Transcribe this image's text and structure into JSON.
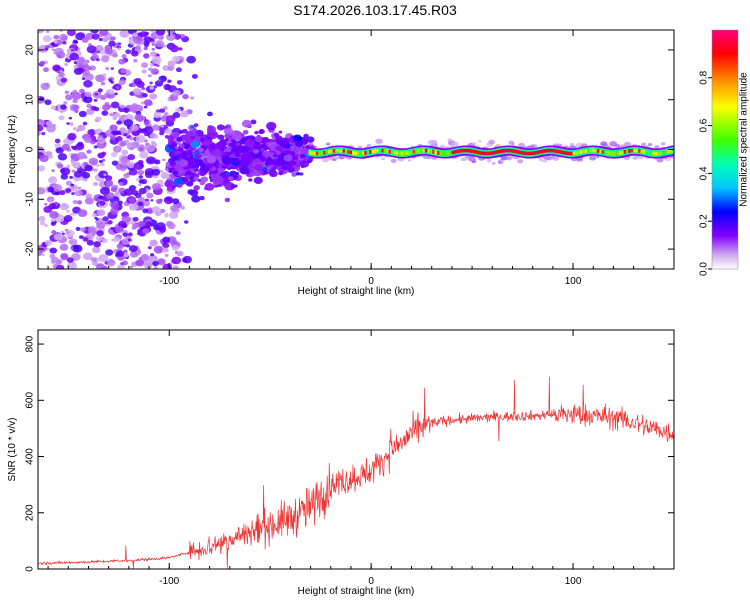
{
  "title": "S174.2026.103.17.45.R03",
  "chart_data": [
    {
      "type": "heatmap",
      "xlabel": "Height of straight line (km)",
      "ylabel": "Frequency (Hz)",
      "xlim": [
        -165,
        150
      ],
      "ylim": [
        -24,
        24
      ],
      "x_ticks": [
        -100,
        0,
        100
      ],
      "y_ticks": [
        -20,
        -10,
        0,
        10,
        20
      ],
      "colorbar": {
        "label": "Normalized spectral amplitude",
        "range": [
          0.0,
          1.0
        ],
        "ticks": [
          0.0,
          0.2,
          0.4,
          0.6,
          0.8
        ],
        "tick_labels": [
          "0.0",
          "0.2",
          "0.4",
          "0.6",
          "0.8"
        ]
      },
      "features": [
        {
          "desc": "diffuse scattered noise",
          "x_range": [
            -165,
            -100
          ],
          "freq_range": [
            -24,
            24
          ],
          "amplitude": 0.1
        },
        {
          "desc": "scatter converging",
          "x_range": [
            -100,
            -30
          ],
          "freq_range": [
            -12,
            8
          ],
          "amplitude": 0.15
        },
        {
          "desc": "narrow band near 0 Hz",
          "x_range": [
            -30,
            150
          ],
          "freq_center": -0.5,
          "amplitude": 0.95
        }
      ]
    },
    {
      "type": "line",
      "xlabel": "Height of straight line (km)",
      "ylabel": "SNR (10 * v/v)",
      "xlim": [
        -165,
        150
      ],
      "ylim": [
        0,
        850
      ],
      "x_ticks": [
        -100,
        0,
        100
      ],
      "y_ticks": [
        0,
        200,
        400,
        600,
        800
      ],
      "series": [
        {
          "name": "SNR",
          "color": "#ee3333",
          "x": [
            -165,
            -140,
            -120,
            -100,
            -80,
            -60,
            -40,
            -30,
            -20,
            -10,
            0,
            10,
            20,
            30,
            40,
            50,
            60,
            80,
            100,
            120,
            140,
            150
          ],
          "y": [
            20,
            25,
            30,
            40,
            80,
            130,
            180,
            220,
            300,
            320,
            350,
            420,
            480,
            520,
            530,
            535,
            540,
            545,
            550,
            540,
            500,
            480
          ]
        }
      ]
    }
  ]
}
